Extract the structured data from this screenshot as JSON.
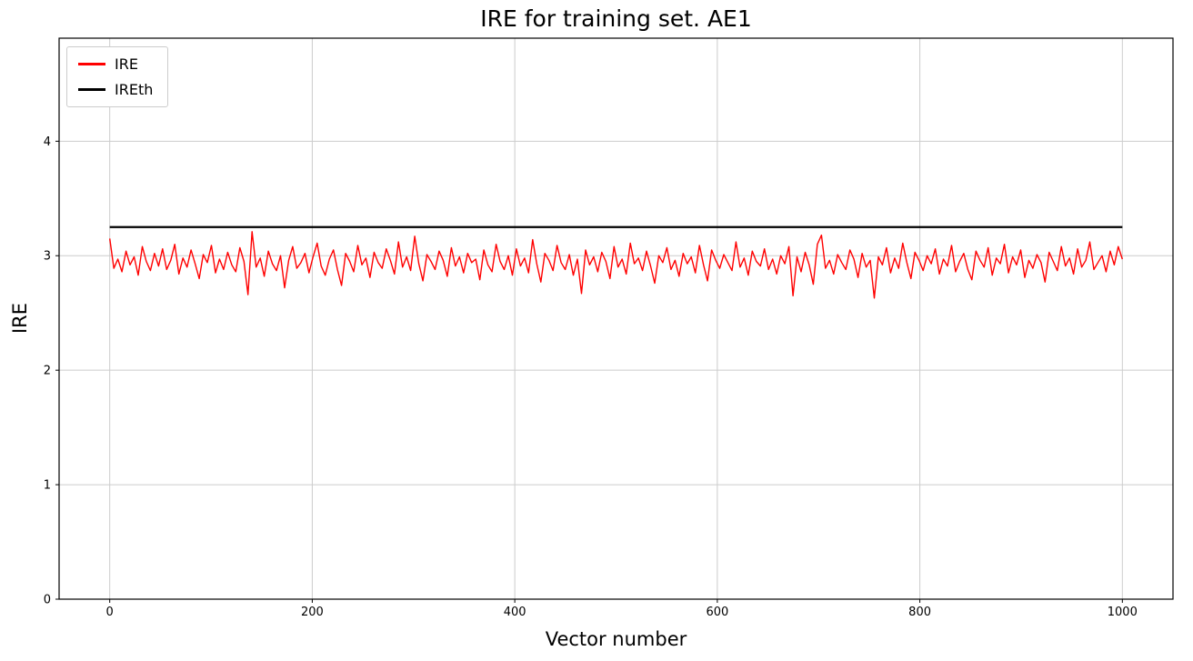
{
  "chart_data": {
    "type": "line",
    "title": "IRE for training set. AE1",
    "xlabel": "Vector number",
    "ylabel": "IRE",
    "xlim": [
      -50,
      1050
    ],
    "ylim": [
      0,
      4.9
    ],
    "xticks": [
      0,
      200,
      400,
      600,
      800,
      1000
    ],
    "yticks": [
      0,
      1,
      2,
      3,
      4
    ],
    "grid": true,
    "grid_color": "#cccccc",
    "legend_position": "upper left",
    "x_range": [
      0,
      1000
    ],
    "series": [
      {
        "name": "IRE",
        "color": "#ff0000",
        "style": "noisy-line",
        "approx_mean": 2.95,
        "approx_min": 2.63,
        "approx_max": 3.22,
        "values": [
          3.15,
          2.89,
          2.97,
          2.86,
          3.04,
          2.92,
          2.99,
          2.83,
          3.08,
          2.95,
          2.87,
          3.02,
          2.91,
          3.06,
          2.88,
          2.96,
          3.1,
          2.84,
          2.98,
          2.9,
          3.05,
          2.93,
          2.8,
          3.01,
          2.94,
          3.09,
          2.85,
          2.97,
          2.88,
          3.03,
          2.92,
          2.86,
          3.07,
          2.95,
          2.66,
          3.21,
          2.9,
          2.98,
          2.82,
          3.04,
          2.93,
          2.87,
          3.0,
          2.72,
          2.96,
          3.08,
          2.89,
          2.94,
          3.02,
          2.85,
          2.99,
          3.11,
          2.91,
          2.83,
          2.97,
          3.05,
          2.88,
          2.74,
          3.02,
          2.95,
          2.86,
          3.09,
          2.92,
          2.98,
          2.81,
          3.03,
          2.94,
          2.89,
          3.06,
          2.96,
          2.84,
          3.12,
          2.9,
          2.99,
          2.87,
          3.17,
          2.93,
          2.78,
          3.01,
          2.95,
          2.88,
          3.04,
          2.96,
          2.82,
          3.07,
          2.91,
          2.99,
          2.85,
          3.02,
          2.94,
          2.97,
          2.79,
          3.05,
          2.92,
          2.86,
          3.1,
          2.95,
          2.88,
          3.0,
          2.83,
          3.06,
          2.91,
          2.98,
          2.85,
          3.14,
          2.93,
          2.77,
          3.02,
          2.96,
          2.87,
          3.09,
          2.94,
          2.88,
          3.01,
          2.83,
          2.97,
          2.67,
          3.05,
          2.92,
          2.99,
          2.86,
          3.03,
          2.95,
          2.8,
          3.08,
          2.9,
          2.97,
          2.84,
          3.11,
          2.93,
          2.98,
          2.87,
          3.04,
          2.91,
          2.76,
          3.0,
          2.94,
          3.07,
          2.88,
          2.96,
          2.82,
          3.02,
          2.93,
          2.99,
          2.85,
          3.09,
          2.92,
          2.78,
          3.05,
          2.96,
          2.89,
          3.01,
          2.94,
          2.87,
          3.12,
          2.9,
          2.98,
          2.83,
          3.04,
          2.95,
          2.91,
          3.06,
          2.88,
          2.97,
          2.84,
          3.0,
          2.93,
          3.08,
          2.65,
          2.99,
          2.86,
          3.03,
          2.92,
          2.75,
          3.1,
          3.18,
          2.89,
          2.96,
          2.84,
          3.01,
          2.94,
          2.88,
          3.05,
          2.97,
          2.81,
          3.02,
          2.9,
          2.96,
          2.63,
          2.99,
          2.92,
          3.07,
          2.85,
          2.98,
          2.89,
          3.11,
          2.94,
          2.8,
          3.03,
          2.96,
          2.87,
          3.0,
          2.93,
          3.06,
          2.84,
          2.97,
          2.91,
          3.09,
          2.86,
          2.95,
          3.02,
          2.88,
          2.79,
          3.04,
          2.96,
          2.9,
          3.07,
          2.83,
          2.98,
          2.93,
          3.1,
          2.85,
          2.99,
          2.92,
          3.05,
          2.81,
          2.96,
          2.89,
          3.01,
          2.94,
          2.77,
          3.03,
          2.95,
          2.87,
          3.08,
          2.91,
          2.98,
          2.84,
          3.06,
          2.9,
          2.96,
          3.12,
          2.88,
          2.94,
          3.0,
          2.86,
          3.04,
          2.92,
          3.08,
          2.97
        ]
      },
      {
        "name": "IREth",
        "color": "#000000",
        "style": "constant",
        "value": 3.25
      }
    ]
  }
}
